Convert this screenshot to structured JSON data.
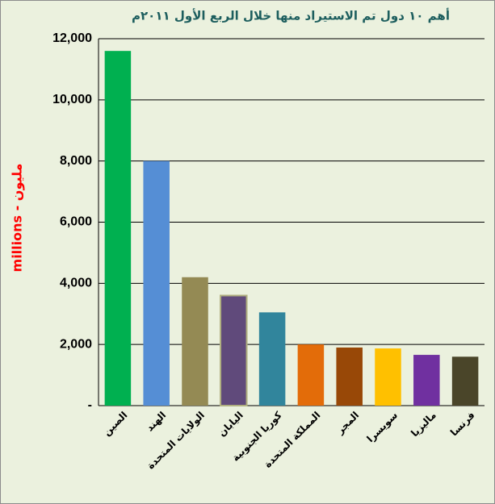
{
  "chart_data": {
    "type": "bar",
    "title": "أهم ١٠ دول تم الاستيراد منها خلال الربع الأول ٢٠١١م",
    "y_label": "millions - مليون",
    "categories": [
      "الصين",
      "الهند",
      "الولايات المتحدة",
      "اليابان",
      "كوريا الجنوبية",
      "المملكة المتحدة",
      "المجر",
      "سويسرا",
      "ماليزيا",
      "فرنسا"
    ],
    "values": [
      11600,
      8000,
      4200,
      3600,
      3050,
      2000,
      1900,
      1870,
      1660,
      1600
    ],
    "colors": [
      "#00b050",
      "#558ed5",
      "#948a54",
      "#604a7b",
      "#31859c",
      "#e36c09",
      "#984807",
      "#ffc000",
      "#7030a0",
      "#4a4529"
    ],
    "ylim": [
      0,
      12000
    ],
    "yticks": [
      {
        "value": 0,
        "label": "-"
      },
      {
        "value": 2000,
        "label": "2,000"
      },
      {
        "value": 4000,
        "label": "4,000"
      },
      {
        "value": 6000,
        "label": "6,000"
      },
      {
        "value": 8000,
        "label": "8,000"
      },
      {
        "value": 10000,
        "label": "10,000"
      },
      {
        "value": 12000,
        "label": "12,000"
      }
    ],
    "grid": true
  }
}
